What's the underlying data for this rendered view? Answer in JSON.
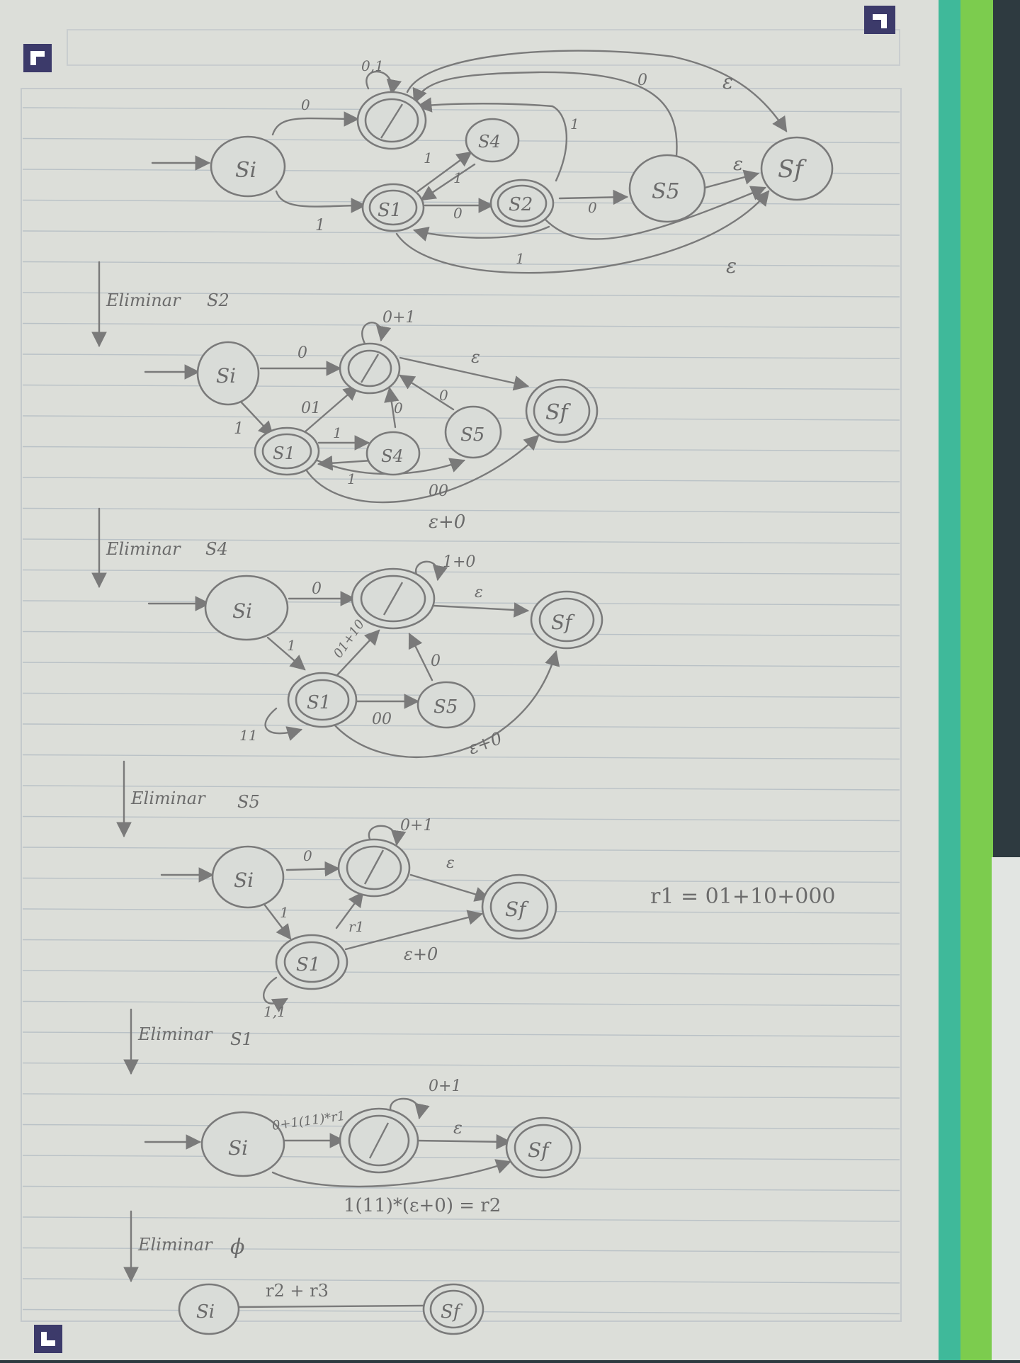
{
  "colors": {
    "paper": "#dcded9",
    "ink": "#7a7a7a",
    "rule_line": "#b9c1c6",
    "teal_strip": "#3fb99a",
    "green_strip": "#7ccc4e",
    "tab_badge": "#3c3a6a",
    "background": "#2e3a40"
  },
  "icons": [
    "corner-tab-icon-top-left",
    "corner-tab-icon-top-right",
    "corner-tab-icon-bottom-left"
  ],
  "stage1": {
    "nodes": {
      "si": "Si",
      "phi": "ϕ",
      "s1": "S1",
      "s2": "S2",
      "s4": "S4",
      "s5": "S5",
      "sf": "Sf"
    },
    "edges": {
      "si_phi": "0",
      "si_s1": "1",
      "phi_loop": "0,1",
      "s1_s4": "1",
      "s4_s1": "1",
      "s1_s2": "0",
      "s2_s5": "0",
      "s2_phi": "1",
      "s5_phi": "0",
      "s2_s1": "1",
      "phi_sf": "ε",
      "s5_sf": "ε",
      "s1_sf": "ε"
    }
  },
  "step1": {
    "label": "Eliminar",
    "target": "S2"
  },
  "stage2": {
    "nodes": {
      "si": "Si",
      "phi": "ϕ",
      "s1": "S1",
      "s4": "S4",
      "s5": "S5",
      "sf": "Sf"
    },
    "edges": {
      "si_phi": "0",
      "si_s1": "1",
      "phi_loop": "0+1",
      "s1_phi": "01",
      "s1_s4": "1",
      "s4_s1": "1",
      "s4_phi": "0",
      "s5_phi": "0",
      "s1_s5": "00",
      "phi_sf": "ε",
      "s1_sf": "ε+0"
    }
  },
  "step2": {
    "label": "Eliminar",
    "target": "S4"
  },
  "stage3": {
    "nodes": {
      "si": "Si",
      "phi": "ϕ",
      "s1": "S1",
      "s5": "S5",
      "sf": "Sf"
    },
    "edges": {
      "si_phi": "0",
      "si_s1": "1",
      "phi_loop": "1+0",
      "s1_phi": "01+10",
      "s1_loop": "11",
      "s1_s5": "00",
      "s5_phi": "0",
      "phi_sf": "ε",
      "s1_sf": "ε+0"
    }
  },
  "step3": {
    "label": "Eliminar",
    "target": "S5"
  },
  "stage4": {
    "nodes": {
      "si": "Si",
      "phi": "ϕ",
      "s1": "S1",
      "sf": "Sf"
    },
    "edges": {
      "si_phi": "0",
      "si_s1": "1",
      "phi_loop": "0+1",
      "s1_phi": "r1",
      "s1_loop": "1,1",
      "phi_sf": "ε",
      "s1_sf": "ε+0"
    },
    "note": "r1 = 01+10+000"
  },
  "step4": {
    "label": "Eliminar",
    "target": "S1"
  },
  "stage5": {
    "nodes": {
      "si": "Si",
      "phi": "ϕ",
      "sf": "Sf"
    },
    "edges": {
      "si_phi": "0+1(11)*r1",
      "phi_loop": "0+1",
      "phi_sf": "ε",
      "si_sf": "1(11)*(ε+0) = r2"
    }
  },
  "step5": {
    "label": "Eliminar",
    "target": "ϕ"
  },
  "stage6": {
    "nodes": {
      "si": "Si",
      "sf": "Sf"
    },
    "edges": {
      "si_sf": "r2 + r3"
    }
  }
}
